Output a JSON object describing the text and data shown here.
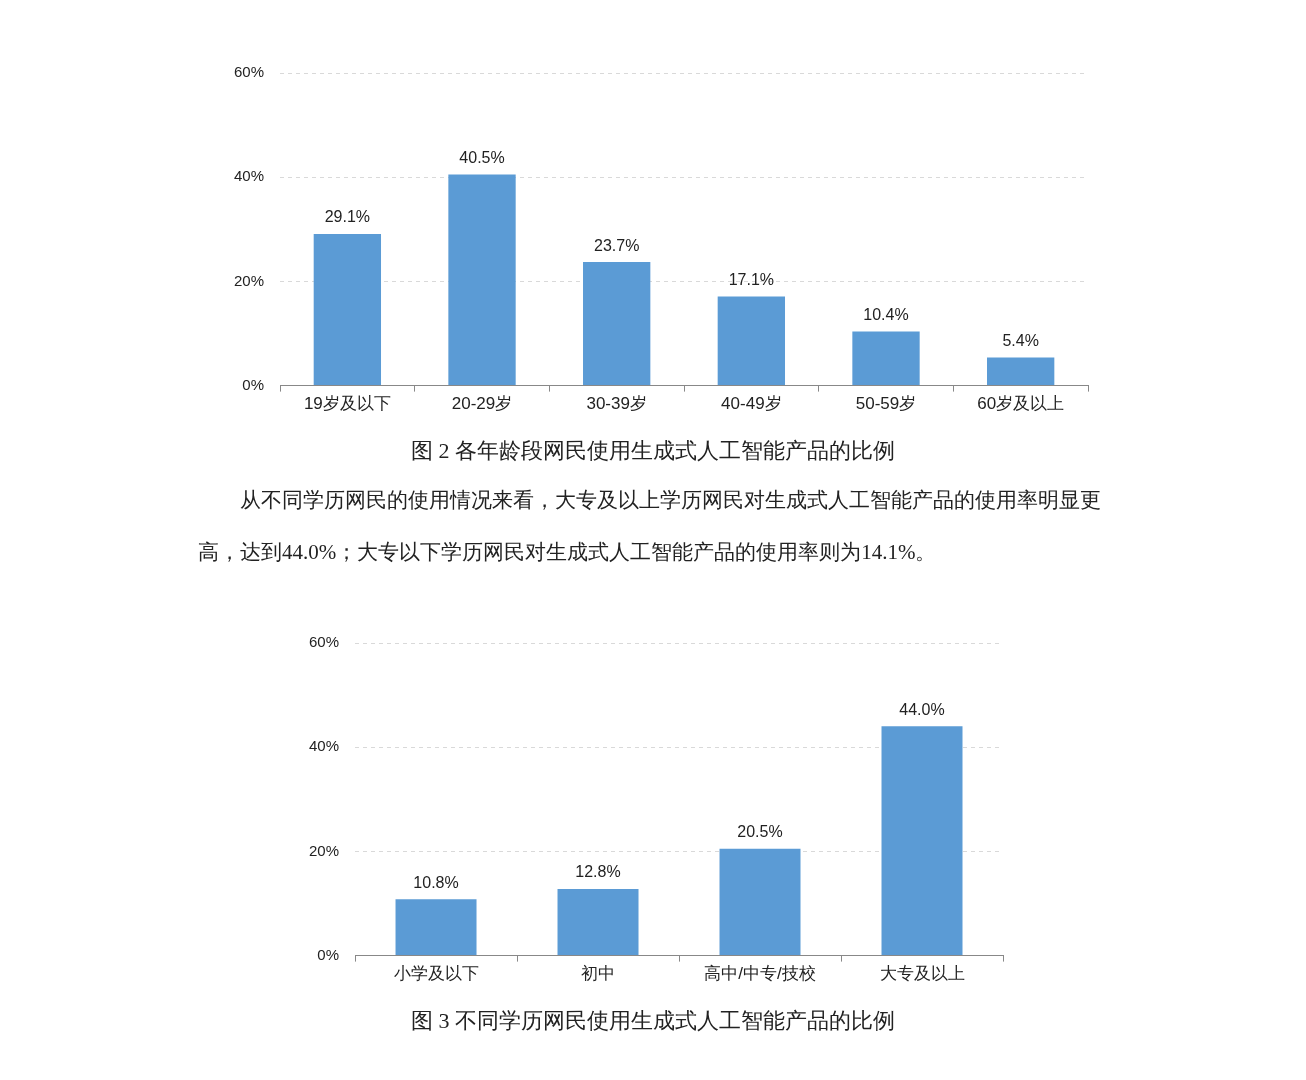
{
  "chart_data": [
    {
      "type": "bar",
      "title": "图 2 各年龄段网民使用生成式人工智能产品的比例",
      "categories": [
        "19岁及以下",
        "20-29岁",
        "30-39岁",
        "40-49岁",
        "50-59岁",
        "60岁及以上"
      ],
      "values": [
        29.1,
        40.5,
        23.7,
        17.1,
        10.4,
        5.4
      ],
      "value_labels": [
        "29.1%",
        "40.5%",
        "23.7%",
        "17.1%",
        "10.4%",
        "5.4%"
      ],
      "color": "#5b9bd5",
      "ylim": [
        0,
        60
      ],
      "yticks": [
        {
          "value": 0,
          "label": "0%"
        },
        {
          "value": 20,
          "label": "20%"
        },
        {
          "value": 40,
          "label": "40%"
        },
        {
          "value": 60,
          "label": "60%"
        }
      ],
      "grid": "y",
      "annotations": [
        "从不同学历网民的使用情况来看，大专及以上学历网民对生成式人工智能产品的使用率明显更高，达到44.0%；大专以下学历网民对生成式人工智能产品的使用率则为14.1%。"
      ]
    },
    {
      "type": "bar",
      "title": "图 3 不同学历网民使用生成式人工智能产品的比例",
      "categories": [
        "小学及以下",
        "初中",
        "高中/中专/技校",
        "大专及以上"
      ],
      "values": [
        10.8,
        12.8,
        20.5,
        44.0
      ],
      "value_labels": [
        "10.8%",
        "12.8%",
        "20.5%",
        "44.0%"
      ],
      "color": "#5b9bd5",
      "ylim": [
        0,
        60
      ],
      "yticks": [
        {
          "value": 0,
          "label": "0%"
        },
        {
          "value": 20,
          "label": "20%"
        },
        {
          "value": 40,
          "label": "40%"
        },
        {
          "value": 60,
          "label": "60%"
        }
      ],
      "grid": "y"
    }
  ]
}
